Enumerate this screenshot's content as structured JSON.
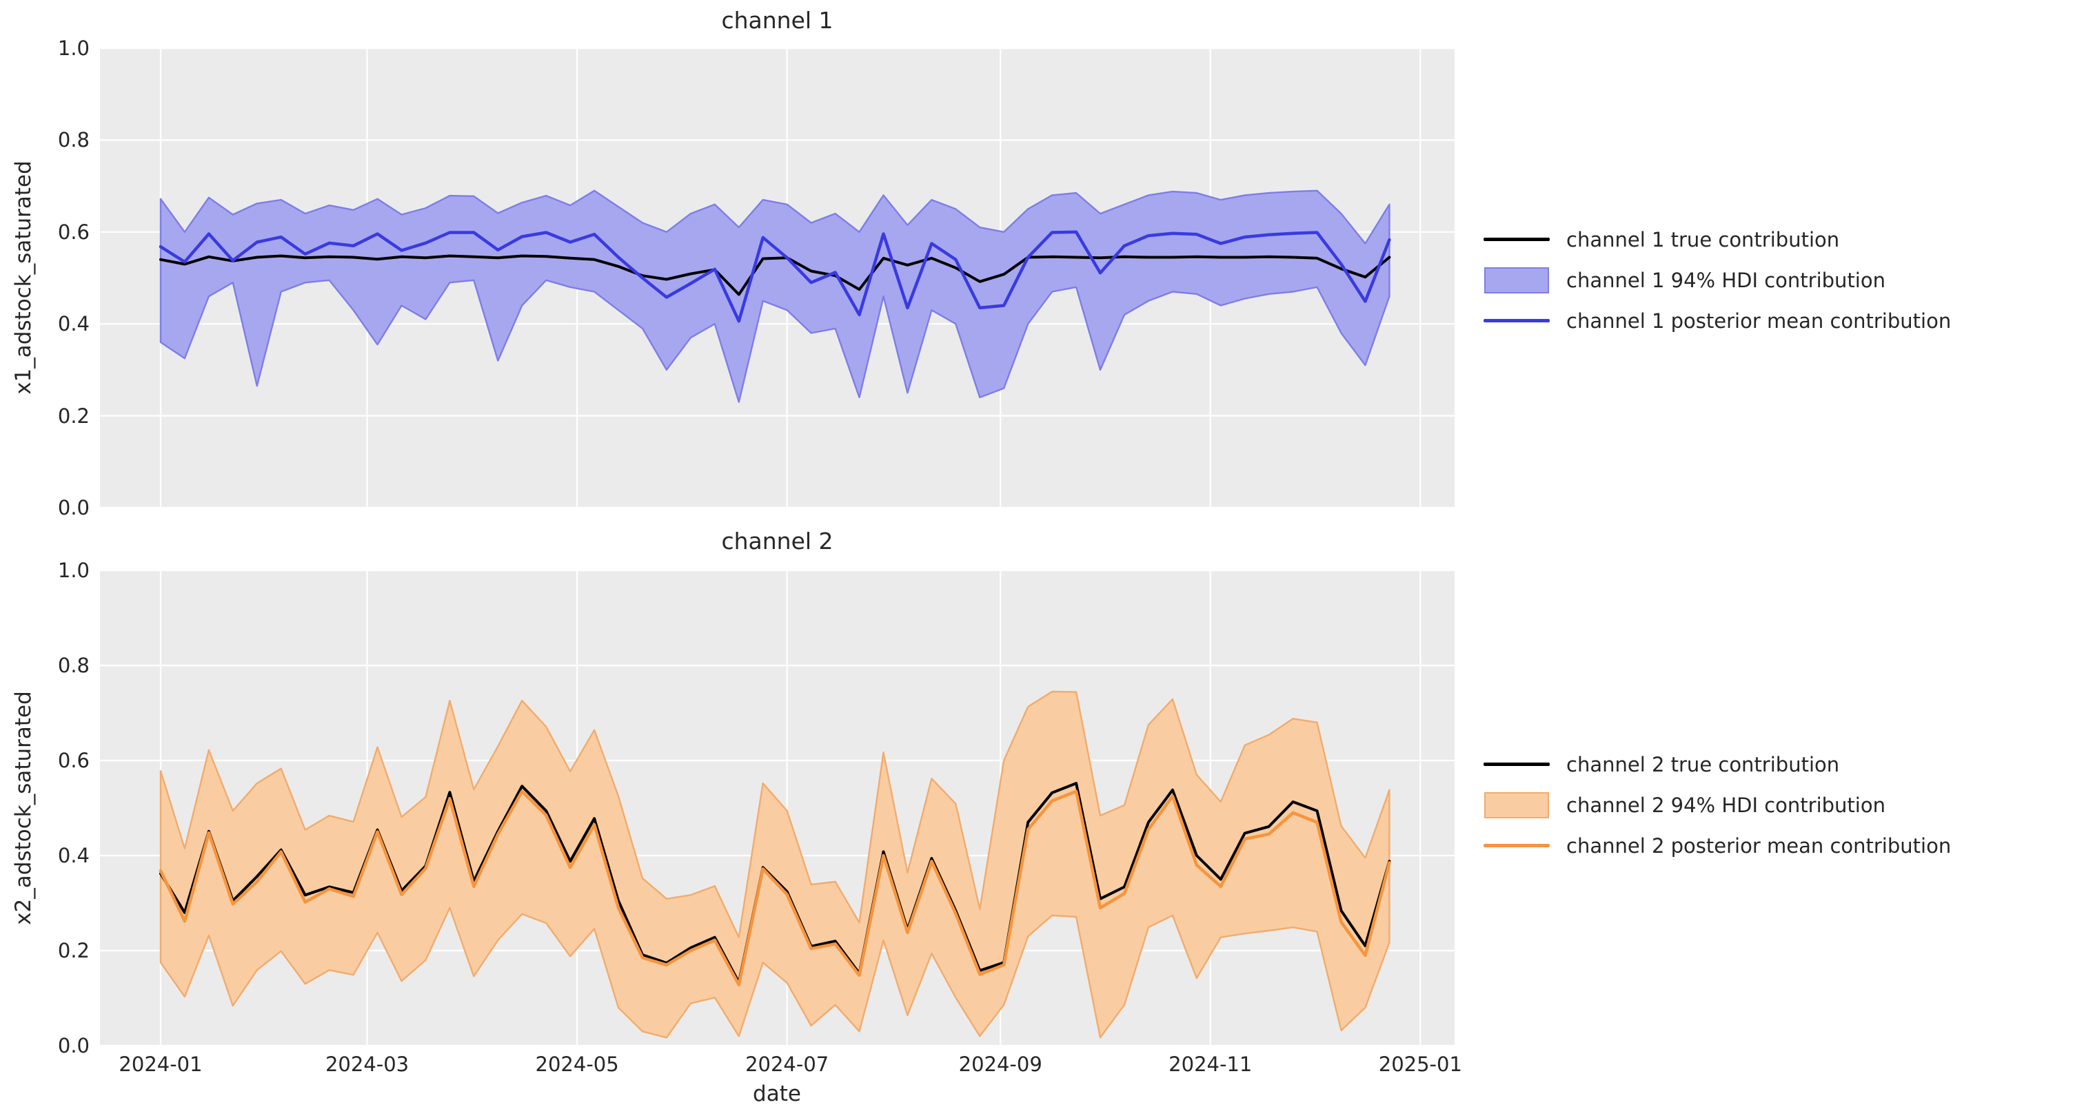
{
  "figure": {
    "background": "#ffffff",
    "plot_background": "#ebebeb",
    "grid_color": "#ffffff",
    "text_color": "#262626"
  },
  "x_axis": {
    "label": "date",
    "ticks": [
      {
        "label": "2024-01",
        "day": 0
      },
      {
        "label": "2024-03",
        "day": 60
      },
      {
        "label": "2024-05",
        "day": 121
      },
      {
        "label": "2024-07",
        "day": 182
      },
      {
        "label": "2024-09",
        "day": 244
      },
      {
        "label": "2024-11",
        "day": 305
      },
      {
        "label": "2025-01",
        "day": 366
      }
    ]
  },
  "y_axis": {
    "ticks": [
      {
        "label": "0.0",
        "value": 0.0
      },
      {
        "label": "0.2",
        "value": 0.2
      },
      {
        "label": "0.4",
        "value": 0.4
      },
      {
        "label": "0.6",
        "value": 0.6
      },
      {
        "label": "0.8",
        "value": 0.8
      },
      {
        "label": "1.0",
        "value": 1.0
      }
    ]
  },
  "panels": [
    {
      "title": "channel 1",
      "ylabel": "x1_adstock_saturated",
      "colors": {
        "true_line": "#000000",
        "mean_line": "#3a3ae2",
        "band_fill": "#a7a7ef",
        "band_edge": "#7d7dea"
      },
      "legend": [
        {
          "type": "line",
          "color": "#000000",
          "label": "channel 1 true contribution"
        },
        {
          "type": "patch",
          "fill": "#a7a7ef",
          "edge": "#7d7dea",
          "label": "channel 1 94% HDI contribution"
        },
        {
          "type": "line",
          "color": "#3a3ae2",
          "label": "channel 1 posterior mean contribution"
        }
      ]
    },
    {
      "title": "channel 2",
      "ylabel": "x2_adstock_saturated",
      "colors": {
        "true_line": "#000000",
        "mean_line": "#f7943e",
        "band_fill": "#f9cda1",
        "band_edge": "#f2ab6d"
      },
      "legend": [
        {
          "type": "line",
          "color": "#000000",
          "label": "channel 2 true contribution"
        },
        {
          "type": "patch",
          "fill": "#f9cda1",
          "edge": "#f2ab6d",
          "label": "channel 2 94% HDI contribution"
        },
        {
          "type": "line",
          "color": "#f7943e",
          "label": "channel 2 posterior mean contribution"
        }
      ]
    }
  ],
  "chart_data": [
    {
      "type": "line",
      "title": "channel 1",
      "xlabel": "date",
      "ylabel": "x1_adstock_saturated",
      "ylim": [
        0.0,
        1.0
      ],
      "x_start": "2024-01-01",
      "x_step_days": 7,
      "n_points": 52,
      "grid": true,
      "legend_position": "right",
      "series": [
        {
          "name": "channel 1 true contribution",
          "values": [
            0.54,
            0.53,
            0.546,
            0.537,
            0.545,
            0.548,
            0.544,
            0.546,
            0.545,
            0.541,
            0.546,
            0.544,
            0.548,
            0.546,
            0.544,
            0.548,
            0.547,
            0.543,
            0.54,
            0.525,
            0.505,
            0.497,
            0.509,
            0.518,
            0.464,
            0.542,
            0.544,
            0.515,
            0.505,
            0.475,
            0.543,
            0.528,
            0.543,
            0.522,
            0.492,
            0.508,
            0.545,
            0.546,
            0.545,
            0.544,
            0.546,
            0.545,
            0.545,
            0.546,
            0.545,
            0.545,
            0.546,
            0.545,
            0.543,
            0.52,
            0.502,
            0.545
          ]
        },
        {
          "name": "channel 1 posterior mean contribution",
          "values": [
            0.568,
            0.535,
            0.596,
            0.538,
            0.578,
            0.589,
            0.552,
            0.576,
            0.57,
            0.596,
            0.56,
            0.576,
            0.599,
            0.599,
            0.561,
            0.59,
            0.599,
            0.578,
            0.595,
            0.545,
            0.5,
            0.458,
            0.488,
            0.519,
            0.406,
            0.588,
            0.544,
            0.49,
            0.512,
            0.42,
            0.596,
            0.435,
            0.575,
            0.54,
            0.435,
            0.44,
            0.545,
            0.599,
            0.6,
            0.511,
            0.57,
            0.592,
            0.597,
            0.595,
            0.575,
            0.589,
            0.594,
            0.597,
            0.599,
            0.53,
            0.449,
            0.583
          ]
        },
        {
          "name": "channel 1 94% HDI contribution",
          "band": true,
          "low": [
            0.36,
            0.325,
            0.46,
            0.49,
            0.265,
            0.47,
            0.49,
            0.495,
            0.43,
            0.355,
            0.44,
            0.41,
            0.49,
            0.495,
            0.32,
            0.44,
            0.495,
            0.48,
            0.47,
            0.43,
            0.39,
            0.3,
            0.37,
            0.4,
            0.23,
            0.45,
            0.43,
            0.38,
            0.39,
            0.24,
            0.46,
            0.25,
            0.43,
            0.4,
            0.24,
            0.26,
            0.4,
            0.47,
            0.48,
            0.3,
            0.42,
            0.45,
            0.47,
            0.465,
            0.44,
            0.455,
            0.465,
            0.47,
            0.48,
            0.38,
            0.31,
            0.46
          ],
          "high": [
            0.672,
            0.6,
            0.675,
            0.638,
            0.662,
            0.67,
            0.64,
            0.658,
            0.648,
            0.672,
            0.638,
            0.652,
            0.679,
            0.678,
            0.641,
            0.664,
            0.679,
            0.658,
            0.69,
            0.655,
            0.62,
            0.6,
            0.64,
            0.66,
            0.61,
            0.67,
            0.66,
            0.62,
            0.64,
            0.6,
            0.68,
            0.615,
            0.67,
            0.65,
            0.61,
            0.6,
            0.65,
            0.68,
            0.685,
            0.64,
            0.66,
            0.68,
            0.688,
            0.685,
            0.67,
            0.68,
            0.685,
            0.688,
            0.69,
            0.64,
            0.575,
            0.66
          ]
        }
      ]
    },
    {
      "type": "line",
      "title": "channel 2",
      "xlabel": "date",
      "ylabel": "x2_adstock_saturated",
      "ylim": [
        0.0,
        1.0
      ],
      "x_start": "2024-01-01",
      "x_step_days": 7,
      "n_points": 52,
      "grid": true,
      "legend_position": "right",
      "series": [
        {
          "name": "channel 2 true contribution",
          "values": [
            0.362,
            0.28,
            0.451,
            0.305,
            0.356,
            0.412,
            0.317,
            0.334,
            0.322,
            0.454,
            0.326,
            0.378,
            0.533,
            0.346,
            0.451,
            0.546,
            0.494,
            0.388,
            0.478,
            0.305,
            0.191,
            0.174,
            0.206,
            0.228,
            0.133,
            0.375,
            0.324,
            0.209,
            0.22,
            0.152,
            0.408,
            0.244,
            0.394,
            0.284,
            0.158,
            0.175,
            0.47,
            0.532,
            0.552,
            0.309,
            0.334,
            0.47,
            0.538,
            0.4,
            0.35,
            0.447,
            0.461,
            0.513,
            0.494,
            0.284,
            0.21,
            0.388
          ]
        },
        {
          "name": "channel 2 posterior mean contribution",
          "values": [
            0.368,
            0.262,
            0.448,
            0.298,
            0.345,
            0.408,
            0.302,
            0.33,
            0.314,
            0.45,
            0.318,
            0.373,
            0.52,
            0.335,
            0.445,
            0.535,
            0.485,
            0.375,
            0.465,
            0.29,
            0.185,
            0.17,
            0.2,
            0.222,
            0.128,
            0.372,
            0.318,
            0.204,
            0.214,
            0.148,
            0.4,
            0.238,
            0.388,
            0.278,
            0.15,
            0.17,
            0.455,
            0.515,
            0.535,
            0.29,
            0.32,
            0.455,
            0.525,
            0.38,
            0.335,
            0.435,
            0.445,
            0.49,
            0.47,
            0.26,
            0.19,
            0.385
          ]
        },
        {
          "name": "channel 2 94% HDI contribution",
          "band": true,
          "low": [
            0.175,
            0.103,
            0.232,
            0.084,
            0.159,
            0.199,
            0.13,
            0.159,
            0.149,
            0.238,
            0.136,
            0.18,
            0.29,
            0.146,
            0.222,
            0.277,
            0.258,
            0.188,
            0.246,
            0.08,
            0.03,
            0.017,
            0.089,
            0.101,
            0.02,
            0.175,
            0.132,
            0.042,
            0.086,
            0.03,
            0.222,
            0.064,
            0.194,
            0.101,
            0.02,
            0.086,
            0.23,
            0.274,
            0.271,
            0.017,
            0.086,
            0.249,
            0.274,
            0.142,
            0.228,
            0.236,
            0.242,
            0.249,
            0.24,
            0.032,
            0.08,
            0.217
          ],
          "high": [
            0.578,
            0.415,
            0.622,
            0.494,
            0.552,
            0.583,
            0.454,
            0.484,
            0.471,
            0.628,
            0.481,
            0.523,
            0.726,
            0.539,
            0.63,
            0.726,
            0.671,
            0.577,
            0.664,
            0.525,
            0.352,
            0.309,
            0.317,
            0.336,
            0.228,
            0.552,
            0.494,
            0.339,
            0.345,
            0.259,
            0.617,
            0.364,
            0.562,
            0.509,
            0.287,
            0.6,
            0.713,
            0.745,
            0.744,
            0.484,
            0.506,
            0.675,
            0.729,
            0.57,
            0.513,
            0.632,
            0.654,
            0.688,
            0.68,
            0.462,
            0.395,
            0.538
          ]
        }
      ]
    }
  ]
}
